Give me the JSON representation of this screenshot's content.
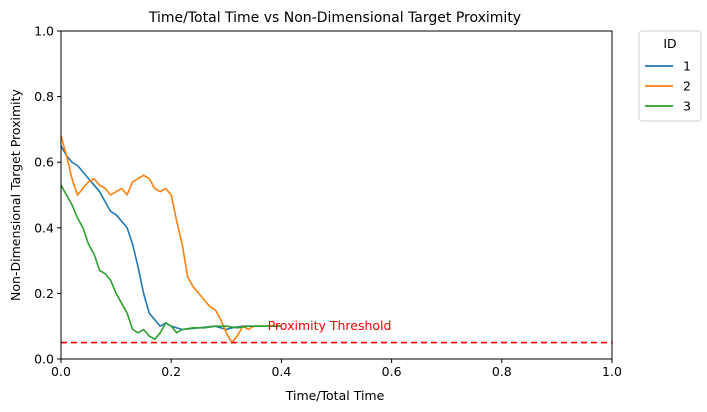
{
  "chart_data": {
    "type": "line",
    "title": "Time/Total Time vs Non-Dimensional Target Proximity",
    "xlabel": "Time/Total Time",
    "ylabel": "Non-Dimensional Target Proximity",
    "xlim": [
      0,
      1
    ],
    "ylim": [
      0,
      1
    ],
    "xticks": [
      "0.0",
      "0.2",
      "0.4",
      "0.6",
      "0.8",
      "1.0"
    ],
    "yticks": [
      "0.0",
      "0.2",
      "0.4",
      "0.6",
      "0.8",
      "1.0"
    ],
    "grid": false,
    "legend": {
      "title": "ID",
      "placement": "outside-top-right",
      "entries": [
        "1",
        "2",
        "3"
      ]
    },
    "threshold": {
      "y": 0.05,
      "label": "Proximity Threshold",
      "color": "#ff0000"
    },
    "series": [
      {
        "name": "1",
        "color": "#1f77b4",
        "x": [
          0.0,
          0.01,
          0.02,
          0.03,
          0.04,
          0.05,
          0.06,
          0.07,
          0.08,
          0.09,
          0.1,
          0.11,
          0.12,
          0.13,
          0.14,
          0.15,
          0.16,
          0.17,
          0.18,
          0.19,
          0.2,
          0.22,
          0.25,
          0.28,
          0.3,
          0.31,
          0.33,
          0.35,
          0.38,
          0.4
        ],
        "y": [
          0.65,
          0.62,
          0.6,
          0.59,
          0.57,
          0.55,
          0.53,
          0.51,
          0.48,
          0.45,
          0.44,
          0.42,
          0.4,
          0.35,
          0.28,
          0.2,
          0.14,
          0.12,
          0.1,
          0.11,
          0.1,
          0.09,
          0.095,
          0.1,
          0.09,
          0.095,
          0.1,
          0.1,
          0.1,
          0.1
        ]
      },
      {
        "name": "2",
        "color": "#ff7f0e",
        "x": [
          0.0,
          0.01,
          0.02,
          0.03,
          0.04,
          0.05,
          0.06,
          0.07,
          0.08,
          0.09,
          0.1,
          0.11,
          0.12,
          0.13,
          0.14,
          0.15,
          0.16,
          0.17,
          0.18,
          0.19,
          0.2,
          0.21,
          0.22,
          0.23,
          0.24,
          0.25,
          0.26,
          0.27,
          0.28,
          0.29,
          0.3,
          0.31,
          0.32,
          0.33,
          0.34,
          0.35,
          0.36,
          0.38,
          0.4
        ],
        "y": [
          0.68,
          0.62,
          0.55,
          0.5,
          0.52,
          0.54,
          0.55,
          0.53,
          0.52,
          0.5,
          0.51,
          0.52,
          0.5,
          0.54,
          0.55,
          0.56,
          0.55,
          0.52,
          0.51,
          0.52,
          0.5,
          0.42,
          0.35,
          0.25,
          0.22,
          0.2,
          0.18,
          0.16,
          0.15,
          0.12,
          0.08,
          0.05,
          0.07,
          0.1,
          0.09,
          0.1,
          0.1,
          0.1,
          0.1
        ]
      },
      {
        "name": "3",
        "color": "#2ca02c",
        "x": [
          0.0,
          0.01,
          0.02,
          0.03,
          0.04,
          0.05,
          0.06,
          0.07,
          0.08,
          0.09,
          0.1,
          0.11,
          0.12,
          0.13,
          0.14,
          0.15,
          0.16,
          0.17,
          0.18,
          0.19,
          0.2,
          0.21,
          0.22,
          0.24,
          0.26,
          0.28,
          0.3,
          0.32,
          0.34,
          0.36,
          0.38,
          0.4
        ],
        "y": [
          0.53,
          0.5,
          0.47,
          0.43,
          0.4,
          0.35,
          0.32,
          0.27,
          0.26,
          0.24,
          0.2,
          0.17,
          0.14,
          0.09,
          0.08,
          0.09,
          0.07,
          0.06,
          0.08,
          0.11,
          0.1,
          0.08,
          0.09,
          0.095,
          0.095,
          0.1,
          0.1,
          0.095,
          0.1,
          0.1,
          0.1,
          0.1
        ]
      }
    ]
  }
}
